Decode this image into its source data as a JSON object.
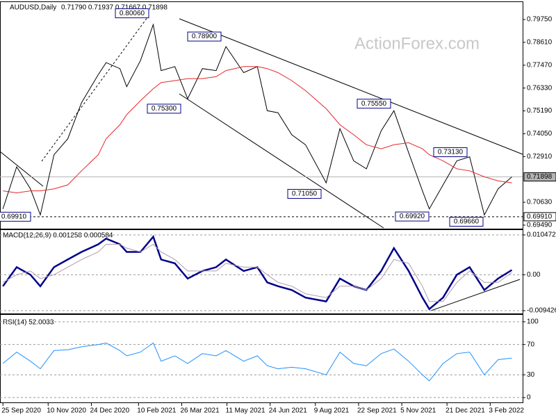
{
  "chart_data": [
    {
      "type": "line",
      "title": "AUDUSD,Daily",
      "subtitle": "0.71790 0.71937 0.71667 0.71898",
      "watermark": "ActionForex.com",
      "x": [
        "2020-09-25",
        "2020-10-09",
        "2020-10-23",
        "2020-11-02",
        "2020-11-16",
        "2020-11-30",
        "2020-12-14",
        "2020-12-31",
        "2021-01-08",
        "2021-01-22",
        "2021-01-29",
        "2021-02-12",
        "2021-02-25",
        "2021-03-05",
        "2021-03-19",
        "2021-04-01",
        "2021-04-16",
        "2021-04-30",
        "2021-05-10",
        "2021-05-28",
        "2021-06-11",
        "2021-06-21",
        "2021-07-02",
        "2021-07-16",
        "2021-07-30",
        "2021-08-20",
        "2021-09-03",
        "2021-09-17",
        "2021-09-30",
        "2021-10-15",
        "2021-10-28",
        "2021-11-12",
        "2021-11-26",
        "2021-12-03",
        "2021-12-17",
        "2021-12-31",
        "2022-01-13",
        "2022-01-28",
        "2022-02-11",
        "2022-02-25"
      ],
      "xlim": [
        "2020-09-22",
        "2022-03-08"
      ],
      "ylim": [
        0.6928,
        0.8055
      ],
      "yticks": [
        {
          "value": 0.7975,
          "label": "0.79750"
        },
        {
          "value": 0.7861,
          "label": "0.78610"
        },
        {
          "value": 0.7747,
          "label": "0.77470"
        },
        {
          "value": 0.7633,
          "label": "0.76330"
        },
        {
          "value": 0.7519,
          "label": "0.75190"
        },
        {
          "value": 0.7405,
          "label": "0.74050"
        },
        {
          "value": 0.7291,
          "label": "0.72910"
        },
        {
          "value": 0.7063,
          "label": "0.70630"
        },
        {
          "value": 0.6949,
          "label": "0.69490"
        }
      ],
      "levels": [
        {
          "value": 0.71898,
          "label": "0.71898",
          "color": "#b4b4b4",
          "dash": false
        },
        {
          "value": 0.6991,
          "label": "0.69910",
          "color": "#000000",
          "dash": true
        }
      ],
      "series": [
        {
          "color": "#000000",
          "values": [
            0.703,
            0.724,
            0.713,
            0.7,
            0.73,
            0.738,
            0.756,
            0.77,
            0.776,
            0.773,
            0.764,
            0.777,
            0.795,
            0.772,
            0.774,
            0.758,
            0.773,
            0.772,
            0.784,
            0.771,
            0.774,
            0.752,
            0.751,
            0.74,
            0.735,
            0.716,
            0.743,
            0.727,
            0.723,
            0.742,
            0.752,
            0.731,
            0.712,
            0.703,
            0.715,
            0.727,
            0.729,
            0.7,
            0.713,
            0.71898
          ]
        },
        {
          "color": "#e8262a",
          "values": [
            0.712,
            0.711,
            0.712,
            0.712,
            0.713,
            0.715,
            0.722,
            0.73,
            0.738,
            0.745,
            0.75,
            0.757,
            0.763,
            0.766,
            0.767,
            0.768,
            0.768,
            0.769,
            0.772,
            0.774,
            0.774,
            0.773,
            0.771,
            0.767,
            0.762,
            0.753,
            0.745,
            0.74,
            0.735,
            0.733,
            0.735,
            0.736,
            0.733,
            0.73,
            0.727,
            0.723,
            0.722,
            0.719,
            0.717,
            0.716
          ]
        }
      ],
      "annotations": [
        {
          "value": 0.8006,
          "label": "0.80060"
        },
        {
          "value": 0.789,
          "label": "0.78900"
        },
        {
          "value": 0.753,
          "label": "0.75300"
        },
        {
          "value": 0.7105,
          "label": "0.71050"
        },
        {
          "value": 0.7555,
          "label": "0.75550"
        },
        {
          "value": 0.7313,
          "label": "0.73130"
        },
        {
          "value": 0.6992,
          "label": "0.69920"
        },
        {
          "value": 0.6966,
          "label": "0.69660"
        },
        {
          "value": 0.6991,
          "label": "0.69910"
        }
      ]
    },
    {
      "type": "line",
      "title": "MACD(12,26,9) 0.001258 0.000584",
      "x": [
        "2020-09-25",
        "2020-10-09",
        "2020-10-23",
        "2020-11-02",
        "2020-11-16",
        "2020-11-30",
        "2020-12-14",
        "2020-12-31",
        "2021-01-08",
        "2021-01-22",
        "2021-01-29",
        "2021-02-12",
        "2021-02-25",
        "2021-03-05",
        "2021-03-19",
        "2021-04-01",
        "2021-04-16",
        "2021-04-30",
        "2021-05-10",
        "2021-05-28",
        "2021-06-11",
        "2021-06-21",
        "2021-07-02",
        "2021-07-16",
        "2021-07-30",
        "2021-08-20",
        "2021-09-03",
        "2021-09-17",
        "2021-09-30",
        "2021-10-15",
        "2021-10-28",
        "2021-11-12",
        "2021-11-26",
        "2021-12-03",
        "2021-12-17",
        "2021-12-31",
        "2022-01-13",
        "2022-01-28",
        "2022-02-11",
        "2022-02-25"
      ],
      "xlim": [
        "2020-09-22",
        "2022-03-08"
      ],
      "ylim": [
        -0.01034,
        0.01138
      ],
      "yticks": [
        0.010472,
        {
          "value": 0,
          "label": "0.00"
        },
        -0.009426
      ],
      "grid": "dashed",
      "series": [
        {
          "color": "#00008b",
          "width": 2.5,
          "values": [
            -0.003,
            0.002,
            0.0,
            -0.003,
            0.002,
            0.004,
            0.006,
            0.008,
            0.0095,
            0.008,
            0.006,
            0.006,
            0.01,
            0.004,
            0.003,
            -0.001,
            0.001,
            0.002,
            0.004,
            0.001,
            0.002,
            -0.002,
            -0.003,
            -0.004,
            -0.006,
            -0.007,
            -0.001,
            -0.003,
            -0.004,
            0.001,
            0.007,
            0.001,
            -0.006,
            -0.009,
            -0.006,
            0.0,
            0.002,
            -0.004,
            -0.001,
            0.001258
          ]
        },
        {
          "color": "#b09aa8",
          "width": 1,
          "values": [
            -0.002,
            0.0,
            0.001,
            -0.001,
            0.0,
            0.002,
            0.004,
            0.006,
            0.008,
            0.008,
            0.007,
            0.006,
            0.008,
            0.006,
            0.004,
            0.001,
            0.001,
            0.001,
            0.003,
            0.002,
            0.002,
            0.0,
            -0.002,
            -0.003,
            -0.005,
            -0.006,
            -0.003,
            -0.003,
            -0.004,
            -0.001,
            0.004,
            0.003,
            -0.003,
            -0.007,
            -0.007,
            -0.002,
            0.001,
            -0.002,
            -0.002,
            0.000584
          ]
        }
      ]
    },
    {
      "type": "line",
      "title": "RSI(14) 52.0033",
      "x": [
        "2020-09-25",
        "2020-10-09",
        "2020-10-23",
        "2020-11-02",
        "2020-11-16",
        "2020-11-30",
        "2020-12-14",
        "2020-12-31",
        "2021-01-08",
        "2021-01-22",
        "2021-01-29",
        "2021-02-12",
        "2021-02-25",
        "2021-03-05",
        "2021-03-19",
        "2021-04-01",
        "2021-04-16",
        "2021-04-30",
        "2021-05-10",
        "2021-05-28",
        "2021-06-11",
        "2021-06-21",
        "2021-07-02",
        "2021-07-16",
        "2021-07-30",
        "2021-08-20",
        "2021-09-03",
        "2021-09-17",
        "2021-09-30",
        "2021-10-15",
        "2021-10-28",
        "2021-11-12",
        "2021-11-26",
        "2021-12-03",
        "2021-12-17",
        "2021-12-31",
        "2022-01-13",
        "2022-01-28",
        "2022-02-11",
        "2022-02-25"
      ],
      "xlim": [
        "2020-09-22",
        "2022-03-08"
      ],
      "ylim": [
        -7.3,
        107.3
      ],
      "yticks": [
        100,
        70,
        30,
        0
      ],
      "grid": "dashed",
      "series": [
        {
          "color": "#1e90ff",
          "width": 1,
          "values": [
            45,
            60,
            48,
            38,
            62,
            63,
            67,
            70,
            72,
            62,
            55,
            60,
            72,
            48,
            55,
            45,
            58,
            55,
            62,
            48,
            55,
            42,
            38,
            40,
            38,
            30,
            60,
            45,
            42,
            58,
            64,
            48,
            30,
            22,
            45,
            58,
            60,
            30,
            50,
            52.0033
          ]
        }
      ],
      "xticks": [
        {
          "value": "2020-09-25",
          "label": "25 Sep 2020"
        },
        {
          "value": "2020-11-10",
          "label": "10 Nov 2020"
        },
        {
          "value": "2020-12-24",
          "label": "24 Dec 2020"
        },
        {
          "value": "2021-02-10",
          "label": "10 Feb 2021"
        },
        {
          "value": "2021-03-26",
          "label": "26 Mar 2021"
        },
        {
          "value": "2021-05-11",
          "label": "11 May 2021"
        },
        {
          "value": "2021-06-24",
          "label": "24 Jun 2021"
        },
        {
          "value": "2021-08-09",
          "label": "9 Aug 2021"
        },
        {
          "value": "2021-09-22",
          "label": "22 Sep 2021"
        },
        {
          "value": "2021-11-05",
          "label": "5 Nov 2021"
        },
        {
          "value": "2021-12-21",
          "label": "21 Dec 2021"
        },
        {
          "value": "2022-02-03",
          "label": "3 Feb 2022"
        }
      ]
    }
  ]
}
